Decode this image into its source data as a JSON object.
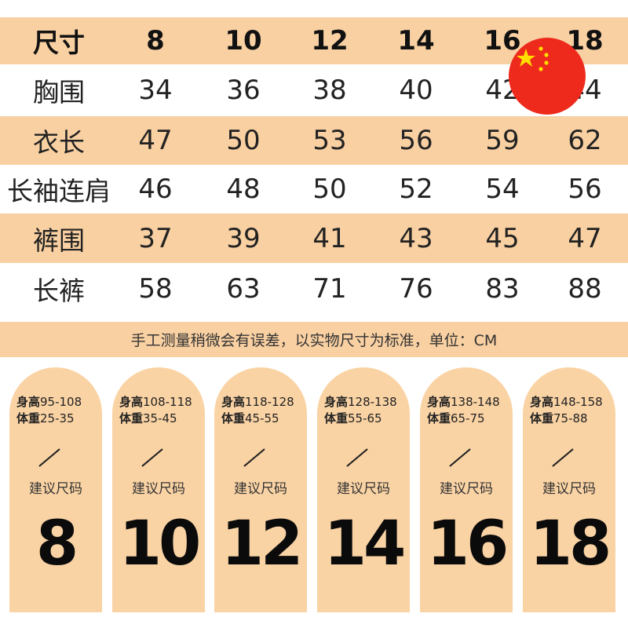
{
  "table": {
    "header": [
      "尺寸",
      "8",
      "10",
      "12",
      "14",
      "16",
      "18"
    ],
    "rows": [
      {
        "label": "胸围",
        "values": [
          "34",
          "36",
          "38",
          "40",
          "42",
          "44"
        ]
      },
      {
        "label": "衣长",
        "values": [
          "47",
          "50",
          "53",
          "56",
          "59",
          "62"
        ]
      },
      {
        "label": "长袖连肩",
        "values": [
          "46",
          "48",
          "50",
          "52",
          "54",
          "56"
        ]
      },
      {
        "label": "裤围",
        "values": [
          "37",
          "39",
          "41",
          "43",
          "45",
          "47"
        ]
      },
      {
        "label": "长裤",
        "values": [
          "58",
          "63",
          "71",
          "76",
          "83",
          "88"
        ]
      }
    ]
  },
  "note": "手工测量稍微会有误差，以实物尺寸为标准，单位：CM",
  "cards": [
    {
      "height_label": "身高",
      "height": "95-108",
      "weight_label": "体重",
      "weight": "25-35",
      "suggest": "建议尺码",
      "size": "8"
    },
    {
      "height_label": "身高",
      "height": "108-118",
      "weight_label": "体重",
      "weight": "35-45",
      "suggest": "建议尺码",
      "size": "10"
    },
    {
      "height_label": "身高",
      "height": "118-128",
      "weight_label": "体重",
      "weight": "45-55",
      "suggest": "建议尺码",
      "size": "12"
    },
    {
      "height_label": "身高",
      "height": "128-138",
      "weight_label": "体重",
      "weight": "55-65",
      "suggest": "建议尺码",
      "size": "14"
    },
    {
      "height_label": "身高",
      "height": "138-148",
      "weight_label": "体重",
      "weight": "65-75",
      "suggest": "建议尺码",
      "size": "16"
    },
    {
      "height_label": "身高",
      "height": "148-158",
      "weight_label": "体重",
      "weight": "75-88",
      "suggest": "建议尺码",
      "size": "18"
    }
  ],
  "colors": {
    "band": "#f9d0a2",
    "card": "#fad3a4",
    "flag_red": "#ee2a1c",
    "flag_star": "#ffde00"
  },
  "icons": {
    "flag": "china-flag-icon"
  }
}
